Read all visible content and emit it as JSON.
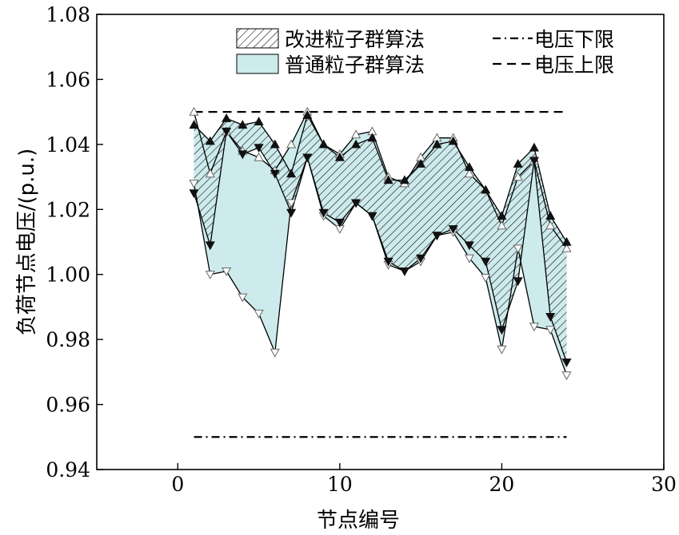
{
  "chart_data": {
    "type": "line",
    "title": "",
    "xlabel": "节点编号",
    "ylabel": "负荷节点电压/(p.u.)",
    "xlim": [
      -5,
      30
    ],
    "ylim": [
      0.94,
      1.08
    ],
    "xticks": [
      0,
      10,
      20,
      30
    ],
    "yticks": [
      0.94,
      0.96,
      0.98,
      1.0,
      1.02,
      1.04,
      1.06,
      1.08
    ],
    "xtick_labels": [
      "0",
      "10",
      "20",
      "30"
    ],
    "ytick_labels": [
      "0.94",
      "0.96",
      "0.98",
      "1.00",
      "1.02",
      "1.04",
      "1.06",
      "1.08"
    ],
    "grid": false,
    "legend_position": "top-right",
    "x": [
      1,
      2,
      3,
      4,
      5,
      6,
      7,
      8,
      9,
      10,
      11,
      12,
      13,
      14,
      15,
      16,
      17,
      18,
      19,
      20,
      21,
      22,
      23,
      24
    ],
    "series": [
      {
        "name": "改进粒子群算法",
        "style": "hatched-band",
        "fill": "hatch",
        "upper": [
          1.046,
          1.041,
          1.048,
          1.046,
          1.047,
          1.04,
          1.031,
          1.049,
          1.04,
          1.036,
          1.04,
          1.042,
          1.029,
          1.029,
          1.034,
          1.04,
          1.041,
          1.033,
          1.026,
          1.018,
          1.034,
          1.039,
          1.018,
          1.01
        ],
        "lower": [
          1.025,
          1.009,
          1.044,
          1.037,
          1.039,
          1.031,
          1.019,
          1.036,
          1.019,
          1.016,
          1.022,
          1.018,
          1.004,
          1.001,
          1.005,
          1.012,
          1.014,
          1.009,
          1.004,
          0.983,
          0.998,
          1.035,
          0.987,
          0.973
        ]
      },
      {
        "name": "普通粒子群算法",
        "style": "filled-band",
        "fill": "#cdeaec",
        "upper": [
          1.05,
          1.031,
          1.044,
          1.038,
          1.036,
          1.032,
          1.04,
          1.05,
          1.04,
          1.037,
          1.043,
          1.044,
          1.03,
          1.028,
          1.036,
          1.042,
          1.042,
          1.031,
          1.026,
          1.015,
          1.03,
          1.035,
          1.015,
          1.008
        ],
        "lower": [
          1.028,
          1.0,
          1.001,
          0.993,
          0.988,
          0.976,
          1.022,
          1.036,
          1.018,
          1.014,
          1.022,
          1.018,
          1.003,
          1.001,
          1.004,
          1.012,
          1.013,
          1.005,
          0.999,
          0.977,
          1.008,
          0.984,
          0.983,
          0.969
        ]
      },
      {
        "name": "电压下限",
        "style": "dash-dot",
        "x": [
          1,
          24
        ],
        "values": [
          0.95,
          0.95
        ]
      },
      {
        "name": "电压上限",
        "style": "dashed",
        "x": [
          1,
          24
        ],
        "values": [
          1.05,
          1.05
        ]
      }
    ]
  },
  "colors": {
    "improved_fill": "#ffffff",
    "improved_hatch": "#000000",
    "normal_fill": "#cdeaec",
    "line": "#000000"
  }
}
